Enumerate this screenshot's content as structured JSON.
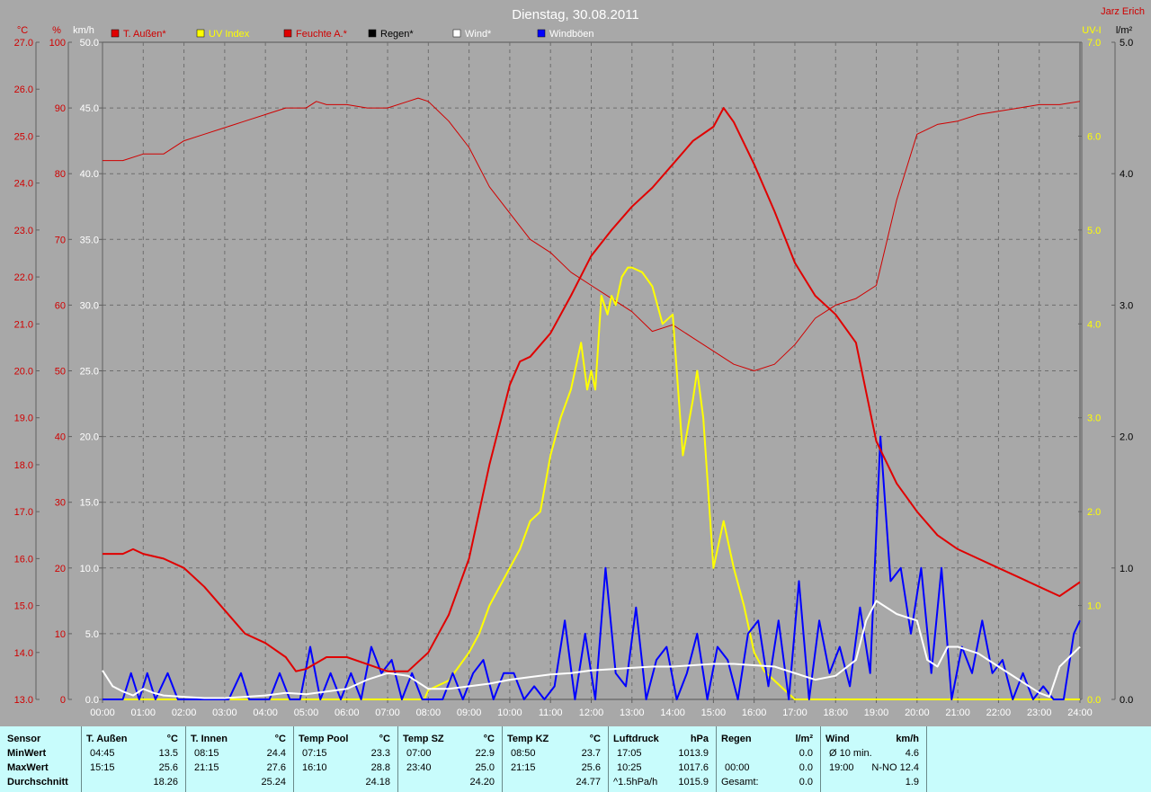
{
  "title": "Dienstag, 30.08.2011",
  "author": "Jarz Erich",
  "axes": {
    "temp": {
      "unit": "°C",
      "ticks": [
        "27.0",
        "26.0",
        "25.0",
        "24.0",
        "23.0",
        "22.0",
        "21.0",
        "20.0",
        "19.0",
        "18.0",
        "17.0",
        "16.0",
        "15.0",
        "14.0",
        "13.0"
      ],
      "color": "#d00000"
    },
    "humidity": {
      "unit": "%",
      "ticks": [
        "100",
        "90",
        "80",
        "70",
        "60",
        "50",
        "40",
        "30",
        "20",
        "10",
        "0"
      ],
      "color": "#d00000"
    },
    "wind": {
      "unit": "km/h",
      "ticks": [
        "50.0",
        "45.0",
        "40.0",
        "35.0",
        "30.0",
        "25.0",
        "20.0",
        "15.0",
        "10.0",
        "5.0",
        "0.0"
      ],
      "color": "#ffffff"
    },
    "uv": {
      "unit": "UV-I",
      "ticks": [
        "7.0",
        "6.0",
        "5.0",
        "4.0",
        "3.0",
        "2.0",
        "1.0",
        "0.0"
      ],
      "color": "#ffff00"
    },
    "rain": {
      "unit": "l/m²",
      "ticks": [
        "5.0",
        "4.0",
        "3.0",
        "2.0",
        "1.0",
        "0.0"
      ],
      "color": "#000000"
    }
  },
  "legend": [
    {
      "label": "T. Außen*",
      "color": "#e00000",
      "text_color": "#d00000"
    },
    {
      "label": "UV Index",
      "color": "#ffff00",
      "text_color": "#ffff00"
    },
    {
      "label": "Feuchte A.*",
      "color": "#e00000",
      "text_color": "#d00000"
    },
    {
      "label": "Regen*",
      "color": "#000000",
      "text_color": "#000000"
    },
    {
      "label": "Wind*",
      "color": "#ffffff",
      "text_color": "#ffffff"
    },
    {
      "label": "Windböen",
      "color": "#0000ff",
      "text_color": "#ffffff"
    }
  ],
  "chart_data": {
    "type": "line",
    "title": "Dienstag, 30.08.2011",
    "x_ticks": [
      "00:00",
      "01:00",
      "02:00",
      "03:00",
      "04:00",
      "05:00",
      "06:00",
      "07:00",
      "08:00",
      "09:00",
      "10:00",
      "11:00",
      "12:00",
      "13:00",
      "14:00",
      "15:00",
      "16:00",
      "17:00",
      "18:00",
      "19:00",
      "20:00",
      "21:00",
      "22:00",
      "23:00",
      "24:00"
    ],
    "xlim": [
      0,
      24
    ],
    "grid": true,
    "series": [
      {
        "name": "T. Außen*",
        "axis": "temp",
        "color": "#e00000",
        "width": 2,
        "x": [
          0,
          0.5,
          0.75,
          1,
          1.5,
          2,
          2.5,
          3,
          3.5,
          4,
          4.5,
          4.75,
          5,
          5.5,
          6,
          6.5,
          7,
          7.5,
          8,
          8.5,
          9,
          9.5,
          10,
          10.25,
          10.5,
          11,
          11.5,
          12,
          12.5,
          13,
          13.5,
          14,
          14.5,
          15,
          15.25,
          15.5,
          16,
          16.5,
          17,
          17.5,
          18,
          18.5,
          19,
          19.5,
          20,
          20.5,
          21,
          21.5,
          22,
          22.5,
          23,
          23.5,
          24
        ],
        "y": [
          16.1,
          16.1,
          16.2,
          16.1,
          16.0,
          15.8,
          15.4,
          14.9,
          14.4,
          14.2,
          13.9,
          13.6,
          13.65,
          13.9,
          13.9,
          13.75,
          13.6,
          13.6,
          14.0,
          14.8,
          16.0,
          18.0,
          19.7,
          20.2,
          20.3,
          20.8,
          21.6,
          22.45,
          23.0,
          23.5,
          23.9,
          24.4,
          24.9,
          25.2,
          25.6,
          25.3,
          24.4,
          23.4,
          22.3,
          21.6,
          21.2,
          20.6,
          18.5,
          17.6,
          17.0,
          16.5,
          16.2,
          16.0,
          15.8,
          15.6,
          15.4,
          15.2,
          15.5
        ]
      },
      {
        "name": "Feuchte A.*",
        "axis": "humidity",
        "color": "#d00000",
        "width": 1,
        "x": [
          0,
          0.5,
          1,
          1.5,
          2,
          2.5,
          3,
          3.5,
          4,
          4.5,
          5,
          5.25,
          5.5,
          6,
          6.5,
          7,
          7.5,
          7.75,
          8,
          8.5,
          9,
          9.5,
          10,
          10.5,
          11,
          11.5,
          12,
          12.5,
          13,
          13.5,
          14,
          14.5,
          15,
          15.5,
          16,
          16.5,
          17,
          17.5,
          18,
          18.5,
          19,
          19.5,
          20,
          20.5,
          21,
          21.5,
          22,
          22.5,
          23,
          23.5,
          24
        ],
        "y": [
          82,
          82,
          83,
          83,
          85,
          86,
          87,
          88,
          89,
          90,
          90,
          91,
          90.5,
          90.5,
          90,
          90,
          91,
          91.5,
          91,
          88,
          84,
          78,
          74,
          70,
          68,
          65,
          63,
          61,
          59,
          56,
          57,
          55,
          53,
          51,
          50,
          51,
          54,
          58,
          60,
          61,
          63,
          76,
          86,
          87.5,
          88,
          89,
          89.5,
          90,
          90.5,
          90.5,
          91
        ]
      },
      {
        "name": "UV Index",
        "axis": "uv",
        "color": "#ffff00",
        "width": 2,
        "x": [
          0,
          7.9,
          8.0,
          8.5,
          9,
          9.25,
          9.5,
          10,
          10.25,
          10.5,
          10.75,
          11,
          11.25,
          11.5,
          11.75,
          11.9,
          12,
          12.1,
          12.25,
          12.4,
          12.5,
          12.6,
          12.75,
          12.9,
          13,
          13.25,
          13.5,
          13.75,
          14,
          14.25,
          14.5,
          14.6,
          14.75,
          15,
          15.25,
          15.35,
          15.5,
          15.75,
          16,
          16.25,
          16.5,
          16.75,
          17,
          24
        ],
        "y": [
          0,
          0,
          0.1,
          0.2,
          0.5,
          0.7,
          1.0,
          1.4,
          1.6,
          1.9,
          2.0,
          2.6,
          3.0,
          3.3,
          3.8,
          3.3,
          3.5,
          3.3,
          4.3,
          4.1,
          4.3,
          4.2,
          4.5,
          4.6,
          4.6,
          4.55,
          4.4,
          4.0,
          4.1,
          2.6,
          3.2,
          3.5,
          3.0,
          1.4,
          1.9,
          1.7,
          1.4,
          1.0,
          0.5,
          0.3,
          0.2,
          0.1,
          0,
          0
        ]
      },
      {
        "name": "Wind*",
        "axis": "wind",
        "color": "#ffffff",
        "width": 2,
        "x": [
          0,
          0.25,
          0.5,
          0.75,
          1,
          1.25,
          1.5,
          2,
          2.5,
          3,
          3.5,
          4,
          4.5,
          5,
          5.5,
          6,
          6.5,
          7,
          7.5,
          8,
          8.5,
          9,
          9.5,
          10,
          10.5,
          11,
          11.5,
          12,
          12.5,
          13,
          13.5,
          14,
          14.5,
          15,
          15.5,
          16,
          16.5,
          17,
          17.5,
          18,
          18.5,
          18.75,
          19,
          19.5,
          20,
          20.25,
          20.5,
          20.75,
          21,
          21.5,
          22,
          22.5,
          23,
          23.25,
          23.5,
          24
        ],
        "y": [
          2.2,
          1.0,
          0.6,
          0.3,
          0.8,
          0.5,
          0.3,
          0.2,
          0.1,
          0.1,
          0.2,
          0.3,
          0.5,
          0.4,
          0.6,
          0.8,
          1.5,
          2.0,
          1.8,
          0.8,
          0.8,
          1.0,
          1.2,
          1.5,
          1.7,
          1.9,
          2.0,
          2.2,
          2.3,
          2.4,
          2.5,
          2.5,
          2.6,
          2.7,
          2.7,
          2.6,
          2.5,
          2.0,
          1.5,
          1.8,
          3.0,
          6.0,
          7.5,
          6.5,
          6.0,
          3.0,
          2.5,
          4.0,
          4.0,
          3.5,
          2.5,
          1.5,
          0.5,
          0.2,
          2.5,
          4.0
        ]
      },
      {
        "name": "Windböen",
        "axis": "wind",
        "color": "#0000ff",
        "width": 2,
        "x": [
          0,
          0.5,
          0.7,
          0.9,
          1.1,
          1.3,
          1.6,
          1.85,
          2.1,
          2.35,
          2.6,
          2.85,
          3.1,
          3.4,
          3.6,
          3.85,
          4.1,
          4.35,
          4.6,
          4.85,
          5.1,
          5.35,
          5.6,
          5.85,
          6.1,
          6.35,
          6.6,
          6.85,
          7.1,
          7.35,
          7.6,
          7.85,
          8.1,
          8.35,
          8.6,
          8.85,
          9.1,
          9.35,
          9.6,
          9.85,
          10.1,
          10.35,
          10.6,
          10.85,
          11.1,
          11.35,
          11.6,
          11.85,
          12.1,
          12.35,
          12.6,
          12.85,
          13.1,
          13.35,
          13.6,
          13.85,
          14.1,
          14.35,
          14.6,
          14.85,
          15.1,
          15.35,
          15.6,
          15.85,
          16.1,
          16.35,
          16.6,
          16.85,
          17.1,
          17.35,
          17.6,
          17.85,
          18.1,
          18.35,
          18.6,
          18.85,
          19.1,
          19.35,
          19.6,
          19.85,
          20.1,
          20.35,
          20.6,
          20.85,
          21.1,
          21.35,
          21.6,
          21.85,
          22.1,
          22.35,
          22.6,
          22.85,
          23.1,
          23.35,
          23.6,
          23.85,
          24
        ],
        "y": [
          0,
          0,
          2,
          0,
          2,
          0,
          2,
          0,
          0,
          0,
          0,
          0,
          0,
          2,
          0,
          0,
          0,
          2,
          0,
          0,
          4,
          0,
          2,
          0,
          2,
          0,
          4,
          2,
          3,
          0,
          2,
          0,
          0,
          0,
          2,
          0,
          2,
          3,
          0,
          2,
          2,
          0,
          1,
          0,
          1,
          6,
          0,
          5,
          0,
          10,
          2,
          1,
          7,
          0,
          3,
          4,
          0,
          2,
          5,
          0,
          4,
          3,
          0,
          5,
          6,
          1,
          6,
          0,
          9,
          0,
          6,
          2,
          4,
          1,
          7,
          2,
          20,
          9,
          10,
          5,
          10,
          2,
          10,
          0,
          4,
          2,
          6,
          2,
          3,
          0,
          2,
          0,
          1,
          0,
          0,
          5,
          6
        ]
      }
    ]
  },
  "table": {
    "sensor_col": {
      "header": "Sensor",
      "rows": [
        "MinWert",
        "MaxWert",
        "Durchschnitt"
      ]
    },
    "columns": [
      {
        "name": "T. Außen",
        "unit": "°C",
        "min_time": "04:45",
        "min_val": "13.5",
        "max_time": "15:15",
        "max_val": "25.6",
        "avg_prefix": "",
        "avg": "18.26"
      },
      {
        "name": "T. Innen",
        "unit": "°C",
        "min_time": "08:15",
        "min_val": "24.4",
        "max_time": "21:15",
        "max_val": "27.6",
        "avg_prefix": "",
        "avg": "25.24"
      },
      {
        "name": "Temp Pool",
        "unit": "°C",
        "min_time": "07:15",
        "min_val": "23.3",
        "max_time": "16:10",
        "max_val": "28.8",
        "avg_prefix": "",
        "avg": "24.18"
      },
      {
        "name": "Temp SZ",
        "unit": "°C",
        "min_time": "07:00",
        "min_val": "22.9",
        "max_time": "23:40",
        "max_val": "25.0",
        "avg_prefix": "",
        "avg": "24.20"
      },
      {
        "name": "Temp KZ",
        "unit": "°C",
        "min_time": "08:50",
        "min_val": "23.7",
        "max_time": "21:15",
        "max_val": "25.6",
        "avg_prefix": "",
        "avg": "24.77"
      },
      {
        "name": "Luftdruck",
        "unit": "hPa",
        "min_time": "17:05",
        "min_val": "1013.9",
        "max_time": "10:25",
        "max_val": "1017.6",
        "avg_prefix": "^1.5hPa/h",
        "avg": "1015.9"
      },
      {
        "name": "Regen",
        "unit": "l/m²",
        "min_time": "",
        "min_val": "0.0",
        "max_time": "00:00",
        "max_val": "0.0",
        "avg_prefix": "Gesamt:",
        "avg": "0.0"
      },
      {
        "name": "Wind",
        "unit": "km/h",
        "min_time": "Ø 10 min.",
        "min_val": "4.6",
        "max_time": "19:00",
        "max_val": "N-NO 12.4",
        "avg_prefix": "",
        "avg": "1.9"
      }
    ]
  }
}
